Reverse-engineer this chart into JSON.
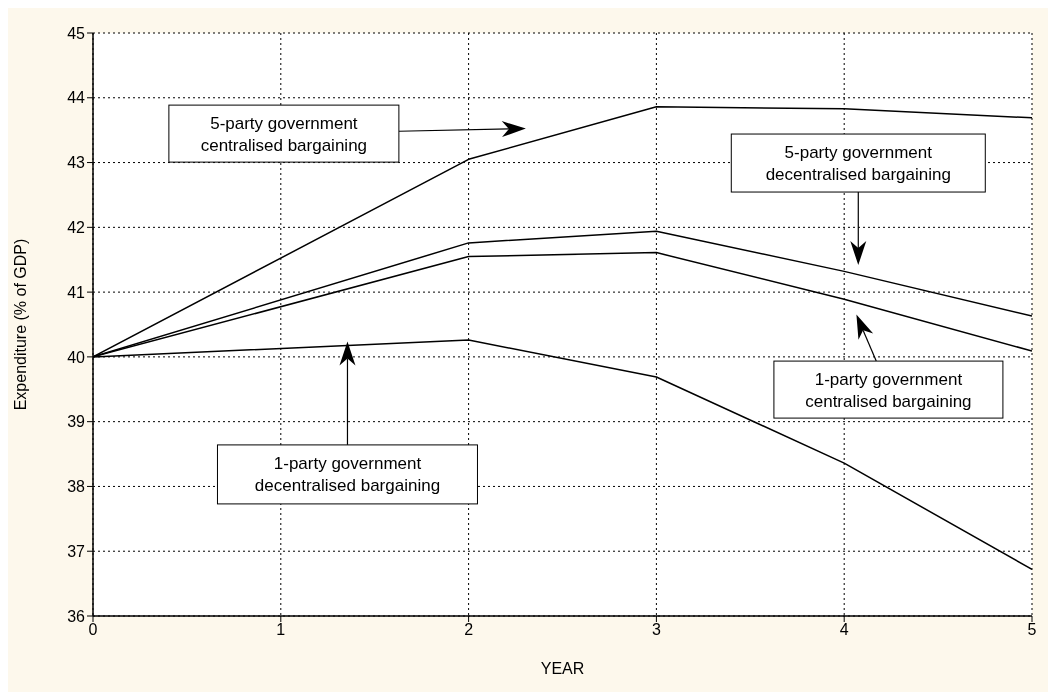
{
  "chart_data": {
    "type": "line",
    "xlabel": "YEAR",
    "ylabel": "Expenditure (% of GDP)",
    "x": [
      0,
      2,
      3,
      4,
      5
    ],
    "series": [
      {
        "color": "#000000",
        "values": [
          40,
          43.05,
          43.86,
          43.83,
          43.69
        ]
      },
      {
        "color": "#000000",
        "values": [
          40,
          41.76,
          41.94,
          41.32,
          40.63
        ]
      },
      {
        "color": "#000000",
        "values": [
          40,
          41.55,
          41.61,
          40.89,
          40.09
        ]
      },
      {
        "color": "#000000",
        "values": [
          40,
          40.26,
          39.69,
          38.36,
          36.72
        ]
      }
    ],
    "xlim": [
      0,
      5
    ],
    "ylim": [
      36,
      45
    ],
    "xticks": [
      0,
      1,
      2,
      3,
      4,
      5
    ],
    "yticks": [
      36,
      37,
      38,
      39,
      40,
      41,
      42,
      43,
      44,
      45
    ],
    "grid": true,
    "annotations": [
      "5-party government\ncentralised bargaining",
      "5-party government\ndecentralised bargaining",
      "1-party government\ncentralised bargaining",
      "1-party government\ndecentralised bargaining"
    ]
  }
}
